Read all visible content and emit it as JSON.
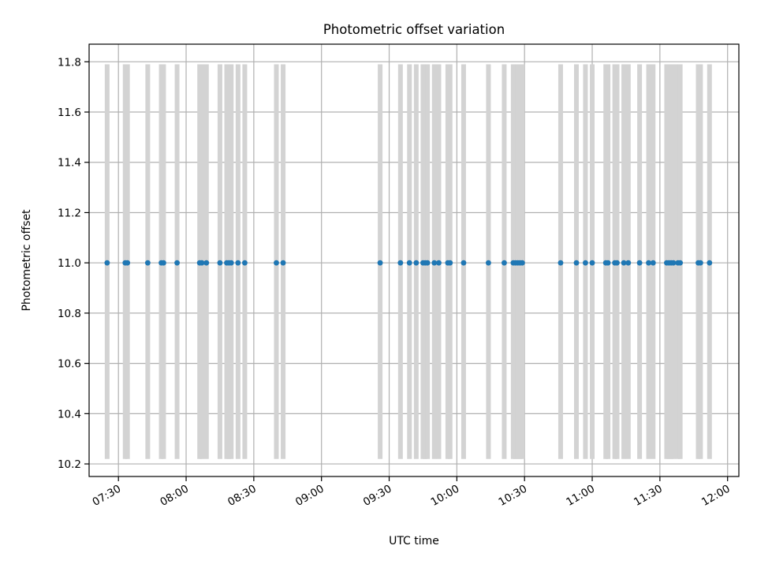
{
  "chart_data": {
    "type": "scatter",
    "title": "Photometric offset variation",
    "xlabel": "UTC time",
    "ylabel": "Photometric offset",
    "xlim": [
      "07:17",
      "12:05"
    ],
    "ylim": [
      10.15,
      11.87
    ],
    "x_ticks": [
      "07:30",
      "08:00",
      "08:30",
      "09:00",
      "09:30",
      "10:00",
      "10:30",
      "11:00",
      "11:30",
      "12:00"
    ],
    "y_ticks": [
      "10.2",
      "10.4",
      "10.6",
      "10.8",
      "11.0",
      "11.2",
      "11.4",
      "11.6",
      "11.8"
    ],
    "grid": true,
    "series": [
      {
        "values": [
          {
            "x": "07:25",
            "y": 11.0
          },
          {
            "x": "07:33",
            "y": 11.0
          },
          {
            "x": "07:34",
            "y": 11.0
          },
          {
            "x": "07:43",
            "y": 11.0
          },
          {
            "x": "07:49",
            "y": 11.0
          },
          {
            "x": "07:50",
            "y": 11.0
          },
          {
            "x": "07:56",
            "y": 11.0
          },
          {
            "x": "08:06",
            "y": 11.0
          },
          {
            "x": "08:07",
            "y": 11.0
          },
          {
            "x": "08:09",
            "y": 11.0
          },
          {
            "x": "08:15",
            "y": 11.0
          },
          {
            "x": "08:18",
            "y": 11.0
          },
          {
            "x": "08:19",
            "y": 11.0
          },
          {
            "x": "08:20",
            "y": 11.0
          },
          {
            "x": "08:23",
            "y": 11.0
          },
          {
            "x": "08:26",
            "y": 11.0
          },
          {
            "x": "08:40",
            "y": 11.0
          },
          {
            "x": "08:43",
            "y": 11.0
          },
          {
            "x": "09:26",
            "y": 11.0
          },
          {
            "x": "09:35",
            "y": 11.0
          },
          {
            "x": "09:39",
            "y": 11.0
          },
          {
            "x": "09:42",
            "y": 11.0
          },
          {
            "x": "09:45",
            "y": 11.0
          },
          {
            "x": "09:46",
            "y": 11.0
          },
          {
            "x": "09:47",
            "y": 11.0
          },
          {
            "x": "09:50",
            "y": 11.0
          },
          {
            "x": "09:52",
            "y": 11.0
          },
          {
            "x": "09:56",
            "y": 11.0
          },
          {
            "x": "09:57",
            "y": 11.0
          },
          {
            "x": "10:03",
            "y": 11.0
          },
          {
            "x": "10:14",
            "y": 11.0
          },
          {
            "x": "10:21",
            "y": 11.0
          },
          {
            "x": "10:25",
            "y": 11.0
          },
          {
            "x": "10:26",
            "y": 11.0
          },
          {
            "x": "10:27",
            "y": 11.0
          },
          {
            "x": "10:28",
            "y": 11.0
          },
          {
            "x": "10:29",
            "y": 11.0
          },
          {
            "x": "10:46",
            "y": 11.0
          },
          {
            "x": "10:53",
            "y": 11.0
          },
          {
            "x": "10:57",
            "y": 11.0
          },
          {
            "x": "11:00",
            "y": 11.0
          },
          {
            "x": "11:06",
            "y": 11.0
          },
          {
            "x": "11:07",
            "y": 11.0
          },
          {
            "x": "11:10",
            "y": 11.0
          },
          {
            "x": "11:11",
            "y": 11.0
          },
          {
            "x": "11:14",
            "y": 11.0
          },
          {
            "x": "11:16",
            "y": 11.0
          },
          {
            "x": "11:21",
            "y": 11.0
          },
          {
            "x": "11:25",
            "y": 11.0
          },
          {
            "x": "11:27",
            "y": 11.0
          },
          {
            "x": "11:33",
            "y": 11.0
          },
          {
            "x": "11:34",
            "y": 11.0
          },
          {
            "x": "11:35",
            "y": 11.0
          },
          {
            "x": "11:36",
            "y": 11.0
          },
          {
            "x": "11:38",
            "y": 11.0
          },
          {
            "x": "11:39",
            "y": 11.0
          },
          {
            "x": "11:47",
            "y": 11.0
          },
          {
            "x": "11:48",
            "y": 11.0
          },
          {
            "x": "11:52",
            "y": 11.0
          }
        ],
        "color": "#1f77b4",
        "error_bars": {
          "lower": 10.22,
          "upper": 11.79,
          "color": "#d3d3d3"
        }
      }
    ]
  }
}
